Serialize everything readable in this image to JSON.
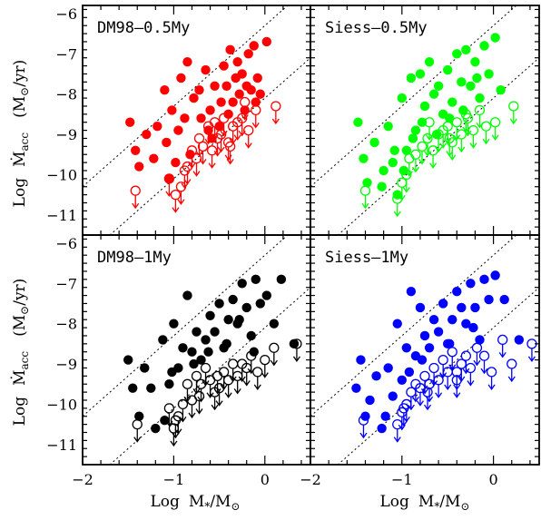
{
  "xlabel": {
    "log": "Log",
    "m": "M",
    "star": "*",
    "slash": "/M",
    "sun": "⊙"
  },
  "ylabel": {
    "log": "Log",
    "mdot": "Ṁ",
    "acc": "acc",
    "units": "(M",
    "sun": "⊙",
    "per_yr": "/yr)"
  },
  "chart_data": [
    {
      "type": "scatter",
      "panel": "top-left",
      "label": "DM98–0.5My",
      "color": "#ff0000",
      "xlim": [
        -2,
        0.5
      ],
      "ylim": [
        -11.5,
        -5.8
      ],
      "xticks": [
        "−2",
        "−1",
        "0"
      ],
      "yticks": [
        "−6",
        "−7",
        "−8",
        "−9",
        "−10",
        "−11"
      ],
      "det_x": [
        -1.48,
        -1.42,
        -1.38,
        -1.3,
        -1.22,
        -1.18,
        -1.1,
        -1.08,
        -1.05,
        -1.02,
        -0.98,
        -0.95,
        -0.92,
        -0.88,
        -0.85,
        -0.82,
        -0.78,
        -0.72,
        -0.65,
        -0.6,
        -0.55,
        -0.5,
        -0.45,
        -0.42,
        -0.38,
        -0.35,
        -0.32,
        -0.28,
        -0.25,
        -0.22,
        -0.18,
        -0.15,
        -0.1,
        -0.05,
        0.02,
        -0.62,
        -0.48,
        -0.3,
        -0.12,
        -0.7,
        -0.58,
        -0.4,
        -0.2,
        -0.08
      ],
      "det_y": [
        -8.7,
        -9.4,
        -9.8,
        -9.0,
        -9.6,
        -8.8,
        -7.9,
        -9.2,
        -10.1,
        -8.4,
        -9.7,
        -8.9,
        -7.6,
        -8.6,
        -7.2,
        -9.5,
        -8.1,
        -7.9,
        -7.4,
        -8.4,
        -7.8,
        -8.8,
        -7.3,
        -7.8,
        -6.9,
        -8.2,
        -7.6,
        -8.0,
        -7.5,
        -8.4,
        -7.0,
        -7.9,
        -8.2,
        -8.0,
        -6.7,
        -8.9,
        -8.2,
        -7.2,
        -6.8,
        -8.6,
        -9.1,
        -8.5,
        -7.8,
        -7.6
      ],
      "up_x": [
        -1.42,
        -1.05,
        -0.98,
        -0.92,
        -0.85,
        -0.8,
        -0.75,
        -0.72,
        -0.68,
        -0.62,
        -0.58,
        -0.52,
        -0.48,
        -0.45,
        -0.4,
        -0.35,
        -0.3,
        -0.25,
        -0.18,
        -0.1,
        0.12,
        -0.88,
        -0.55,
        -0.38,
        -0.22
      ],
      "up_y": [
        -10.4,
        -10.1,
        -10.5,
        -10.3,
        -9.8,
        -9.4,
        -9.6,
        -9.1,
        -9.3,
        -8.8,
        -9.4,
        -9.1,
        -9.0,
        -8.6,
        -9.2,
        -8.8,
        -8.7,
        -8.6,
        -8.9,
        -8.4,
        -8.3,
        -9.9,
        -8.7,
        -9.3,
        -8.2
      ]
    },
    {
      "type": "scatter",
      "panel": "top-right",
      "label": "Siess–0.5My",
      "color": "#00ff00",
      "xlim": [
        -2,
        0.5
      ],
      "ylim": [
        -11.5,
        -5.8
      ],
      "xticks": [
        "−2",
        "−1",
        "0"
      ],
      "yticks": [
        "−6",
        "−7",
        "−8",
        "−9",
        "−10",
        "−11"
      ],
      "det_x": [
        -1.48,
        -1.42,
        -1.38,
        -1.3,
        -1.22,
        -1.15,
        -1.1,
        -1.05,
        -1.0,
        -0.95,
        -0.9,
        -0.85,
        -0.8,
        -0.75,
        -0.7,
        -0.65,
        -0.6,
        -0.55,
        -0.5,
        -0.45,
        -0.4,
        -0.35,
        -0.3,
        -0.25,
        -0.2,
        -0.15,
        -0.1,
        -0.05,
        0.02,
        0.08,
        -0.98,
        -0.88,
        -0.78,
        -0.62,
        -0.48,
        -0.33,
        -0.18,
        -1.2,
        -1.08
      ],
      "det_y": [
        -8.7,
        -9.6,
        -10.2,
        -9.2,
        -10.3,
        -8.8,
        -9.7,
        -10.5,
        -8.1,
        -9.4,
        -7.6,
        -8.9,
        -7.5,
        -8.3,
        -7.2,
        -8.0,
        -7.8,
        -8.5,
        -7.4,
        -8.2,
        -7.0,
        -7.7,
        -6.9,
        -7.8,
        -7.2,
        -8.1,
        -6.8,
        -7.5,
        -6.6,
        -7.9,
        -9.9,
        -9.1,
        -8.7,
        -9.0,
        -8.6,
        -8.4,
        -7.6,
        -9.9,
        -9.4
      ],
      "up_x": [
        -1.4,
        -1.05,
        -1.0,
        -0.92,
        -0.85,
        -0.78,
        -0.72,
        -0.66,
        -0.6,
        -0.55,
        -0.5,
        -0.45,
        -0.4,
        -0.35,
        -0.28,
        -0.22,
        -0.15,
        -0.08,
        0.02,
        0.22,
        -0.95,
        -0.7,
        -0.48,
        -0.3
      ],
      "up_y": [
        -10.4,
        -10.6,
        -10.2,
        -9.6,
        -9.5,
        -9.3,
        -9.1,
        -9.4,
        -9.0,
        -8.9,
        -8.8,
        -9.2,
        -8.7,
        -9.0,
        -8.6,
        -8.9,
        -8.4,
        -8.8,
        -8.7,
        -8.3,
        -10.0,
        -8.7,
        -9.1,
        -8.5
      ]
    },
    {
      "type": "scatter",
      "panel": "bottom-left",
      "label": "DM98–1My",
      "color": "#000000",
      "xlim": [
        -2,
        0.5
      ],
      "ylim": [
        -11.5,
        -5.8
      ],
      "xticks": [
        "−2",
        "−1",
        "0"
      ],
      "yticks": [
        "−6",
        "−7",
        "−8",
        "−9",
        "−10",
        "−11"
      ],
      "det_x": [
        -1.5,
        -1.45,
        -1.38,
        -1.32,
        -1.25,
        -1.2,
        -1.12,
        -1.05,
        -1.0,
        -0.95,
        -0.9,
        -0.85,
        -0.8,
        -0.75,
        -0.7,
        -0.65,
        -0.6,
        -0.55,
        -0.5,
        -0.45,
        -0.4,
        -0.35,
        -0.3,
        -0.25,
        -0.2,
        -0.15,
        -0.1,
        -0.05,
        0.02,
        0.1,
        0.18,
        0.32,
        -1.02,
        -0.78,
        -0.62,
        -0.42,
        -0.28,
        -0.12,
        -1.1
      ],
      "det_y": [
        -8.9,
        -9.6,
        -10.3,
        -9.1,
        -9.6,
        -10.6,
        -8.4,
        -9.5,
        -8.0,
        -9.1,
        -8.6,
        -7.3,
        -8.7,
        -8.2,
        -8.9,
        -8.4,
        -7.8,
        -8.2,
        -7.5,
        -8.6,
        -7.9,
        -7.4,
        -8.0,
        -7.0,
        -7.6,
        -8.3,
        -6.9,
        -7.5,
        -7.3,
        -8.0,
        -6.9,
        -8.5,
        -9.2,
        -9.0,
        -8.7,
        -8.5,
        -7.9,
        -8.7,
        -10.4
      ],
      "up_x": [
        -1.4,
        -1.05,
        -1.0,
        -0.95,
        -0.9,
        -0.85,
        -0.8,
        -0.75,
        -0.7,
        -0.65,
        -0.6,
        -0.55,
        -0.5,
        -0.45,
        -0.4,
        -0.35,
        -0.3,
        -0.25,
        -0.2,
        -0.15,
        -0.08,
        0.0,
        0.1,
        0.35,
        -0.98,
        -0.72,
        -0.52
      ],
      "up_y": [
        -10.5,
        -10.1,
        -10.6,
        -10.3,
        -10.0,
        -9.5,
        -9.9,
        -9.3,
        -9.5,
        -9.1,
        -9.4,
        -9.7,
        -9.6,
        -9.2,
        -9.4,
        -9.0,
        -9.3,
        -9.0,
        -9.1,
        -8.8,
        -9.2,
        -8.9,
        -8.6,
        -8.5,
        -10.4,
        -9.8,
        -9.3
      ]
    },
    {
      "type": "scatter",
      "panel": "bottom-right",
      "label": "Siess–1My",
      "color": "#0000ff",
      "xlim": [
        -2,
        0.5
      ],
      "ylim": [
        -11.5,
        -5.8
      ],
      "xticks": [
        "−2",
        "−1",
        "0"
      ],
      "yticks": [
        "−6",
        "−7",
        "−8",
        "−9",
        "−10",
        "−11"
      ],
      "det_x": [
        -1.5,
        -1.45,
        -1.4,
        -1.35,
        -1.28,
        -1.22,
        -1.15,
        -1.1,
        -1.05,
        -1.0,
        -0.95,
        -0.9,
        -0.85,
        -0.8,
        -0.75,
        -0.7,
        -0.65,
        -0.6,
        -0.55,
        -0.5,
        -0.45,
        -0.4,
        -0.35,
        -0.3,
        -0.25,
        -0.2,
        -0.15,
        -0.1,
        -0.05,
        0.02,
        0.12,
        0.28,
        -1.18,
        -0.92,
        -0.78,
        -0.48,
        -0.22
      ],
      "det_y": [
        -9.6,
        -8.9,
        -10.3,
        -9.9,
        -9.3,
        -10.6,
        -9.1,
        -9.8,
        -8.0,
        -9.4,
        -8.6,
        -7.2,
        -8.8,
        -7.6,
        -8.3,
        -8.6,
        -7.9,
        -8.2,
        -7.5,
        -8.5,
        -7.9,
        -7.2,
        -7.6,
        -8.0,
        -7.0,
        -7.6,
        -8.4,
        -6.9,
        -7.4,
        -6.8,
        -7.4,
        -8.4,
        -10.3,
        -9.2,
        -8.9,
        -8.5,
        -8.1
      ],
      "up_x": [
        -1.42,
        -1.05,
        -1.0,
        -0.95,
        -0.9,
        -0.85,
        -0.8,
        -0.75,
        -0.7,
        -0.65,
        -0.6,
        -0.55,
        -0.5,
        -0.45,
        -0.4,
        -0.35,
        -0.3,
        -0.25,
        -0.18,
        -0.1,
        -0.02,
        0.1,
        0.2,
        0.42,
        -0.98,
        -0.72,
        -0.4
      ],
      "up_y": [
        -10.4,
        -10.5,
        -10.2,
        -10.0,
        -9.7,
        -9.5,
        -9.6,
        -9.3,
        -9.5,
        -9.1,
        -9.4,
        -8.9,
        -9.2,
        -8.7,
        -9.4,
        -9.0,
        -8.8,
        -9.1,
        -8.6,
        -8.8,
        -9.2,
        -8.4,
        -9.0,
        -8.5,
        -10.1,
        -9.7,
        -9.2
      ]
    }
  ]
}
